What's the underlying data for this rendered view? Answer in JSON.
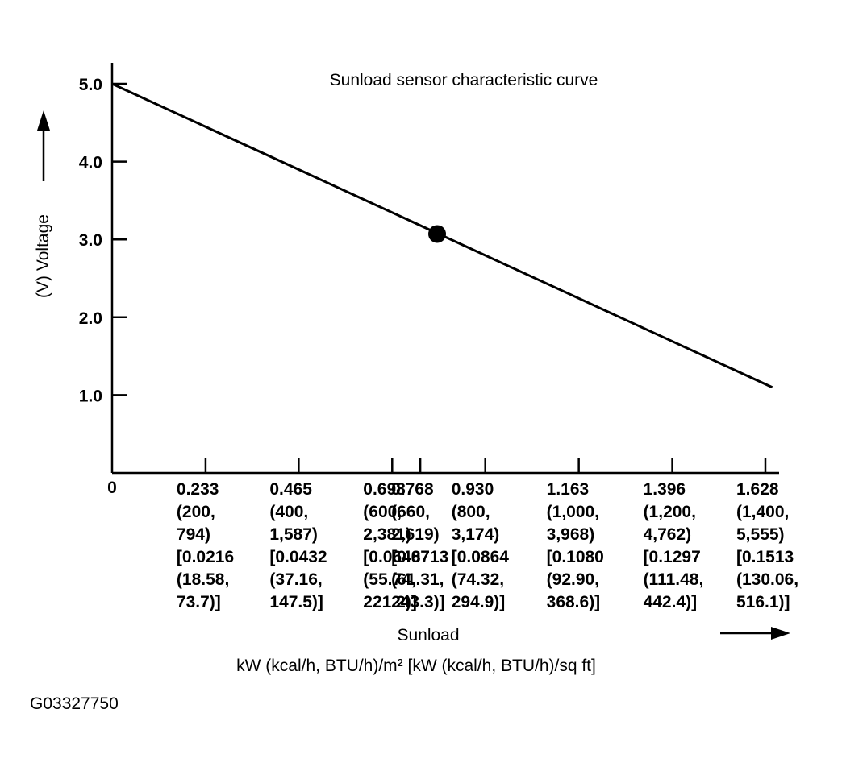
{
  "chart_data": {
    "type": "line",
    "title": "Sunload sensor characteristic curve",
    "ylabel": "(V) Voltage",
    "xlabel": "Sunload",
    "xunit": "kW (kcal/h, BTU/h)/m²  [kW (kcal/h, BTU/h)/sq ft]",
    "figure_id": "G03327750",
    "origin_label": "0",
    "ylim": [
      0,
      5
    ],
    "xlim": [
      0,
      1.628
    ],
    "y_ticks": [
      {
        "value": 1.0,
        "label": "1.0"
      },
      {
        "value": 2.0,
        "label": "2.0"
      },
      {
        "value": 3.0,
        "label": "3.0"
      },
      {
        "value": 4.0,
        "label": "4.0"
      },
      {
        "value": 5.0,
        "label": "5.0"
      }
    ],
    "x_ticks": [
      {
        "value": 0.233,
        "lines": [
          "0.233",
          "(200,",
          "794)",
          "[0.0216",
          "(18.58,",
          "73.7)]"
        ]
      },
      {
        "value": 0.465,
        "lines": [
          "0.465",
          "(400,",
          "1,587)",
          "[0.0432",
          "(37.16,",
          "147.5)]"
        ]
      },
      {
        "value": 0.698,
        "lines": [
          "0.698",
          "(600,",
          "2,381)",
          "[0.0648",
          "(55.74,",
          "221.2)]"
        ]
      },
      {
        "value": 0.768,
        "lines": [
          "0.768",
          "(660,",
          "2,619)",
          "[0.0713",
          "(61.31,",
          "243.3)]"
        ]
      },
      {
        "value": 0.93,
        "lines": [
          "0.930",
          "(800,",
          "3,174)",
          "[0.0864",
          "(74.32,",
          "294.9)]"
        ]
      },
      {
        "value": 1.163,
        "lines": [
          "1.163",
          "(1,000,",
          "3,968)",
          "[0.1080",
          "(92.90,",
          "368.6)]"
        ]
      },
      {
        "value": 1.396,
        "lines": [
          "1.396",
          "(1,200,",
          "4,762)",
          "[0.1297",
          "(111.48,",
          "442.4)]"
        ]
      },
      {
        "value": 1.628,
        "lines": [
          "1.628",
          "(1,400,",
          "5,555)",
          "[0.1513",
          "(130.06,",
          "516.1)]"
        ]
      }
    ],
    "series": [
      {
        "x": [
          0,
          1.645
        ],
        "y": [
          5.0,
          1.1
        ]
      }
    ],
    "marker": {
      "x": 0.81,
      "y": 3.07
    }
  }
}
